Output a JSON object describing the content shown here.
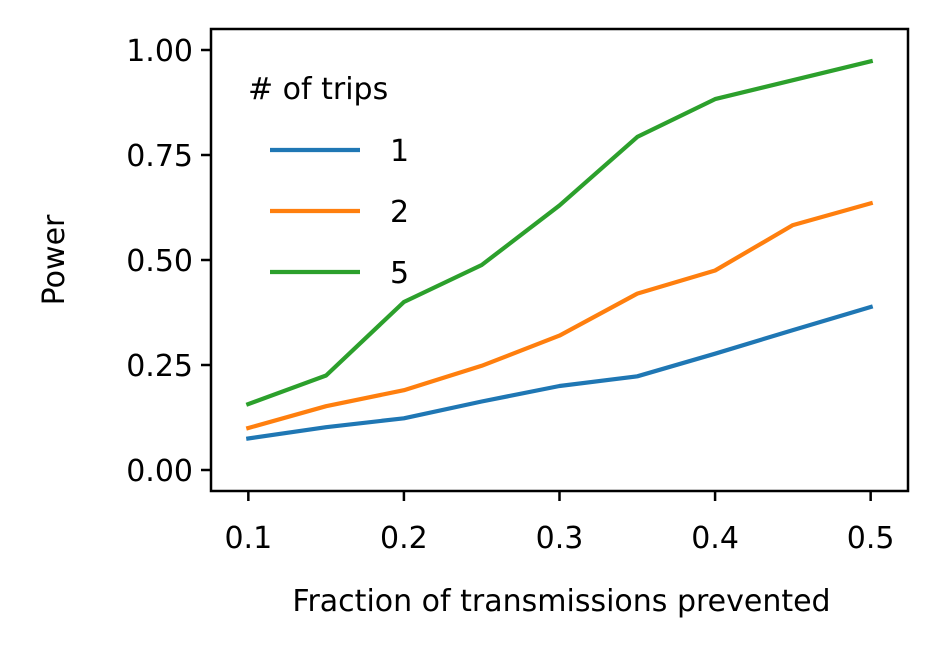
{
  "chart_data": {
    "type": "line",
    "title": "",
    "xlabel": "Fraction of transmissions prevented",
    "ylabel": "Power",
    "xlim": [
      0.076,
      0.524
    ],
    "ylim": [
      -0.05,
      1.05
    ],
    "xticks": [
      0.1,
      0.2,
      0.3,
      0.4,
      0.5
    ],
    "xtick_labels": [
      "0.1",
      "0.2",
      "0.3",
      "0.4",
      "0.5"
    ],
    "yticks": [
      0.0,
      0.25,
      0.5,
      0.75,
      1.0
    ],
    "ytick_labels": [
      "0.00",
      "0.25",
      "0.50",
      "0.75",
      "1.00"
    ],
    "grid": false,
    "legend": {
      "title": "# of trips",
      "placement": "upper-left"
    },
    "x": [
      0.1,
      0.15,
      0.2,
      0.25,
      0.3,
      0.35,
      0.4,
      0.45,
      0.5
    ],
    "series": [
      {
        "name": "1",
        "color": "#1f77b4",
        "values": [
          0.075,
          0.102,
          0.123,
          0.163,
          0.2,
          0.223,
          0.277,
          0.333,
          0.388
        ]
      },
      {
        "name": "2",
        "color": "#ff7f0e",
        "values": [
          0.1,
          0.152,
          0.19,
          0.248,
          0.32,
          0.42,
          0.475,
          0.583,
          0.635
        ]
      },
      {
        "name": "5",
        "color": "#2ca02c",
        "values": [
          0.157,
          0.225,
          0.4,
          0.488,
          0.63,
          0.793,
          0.883,
          0.928,
          0.973
        ]
      }
    ]
  }
}
